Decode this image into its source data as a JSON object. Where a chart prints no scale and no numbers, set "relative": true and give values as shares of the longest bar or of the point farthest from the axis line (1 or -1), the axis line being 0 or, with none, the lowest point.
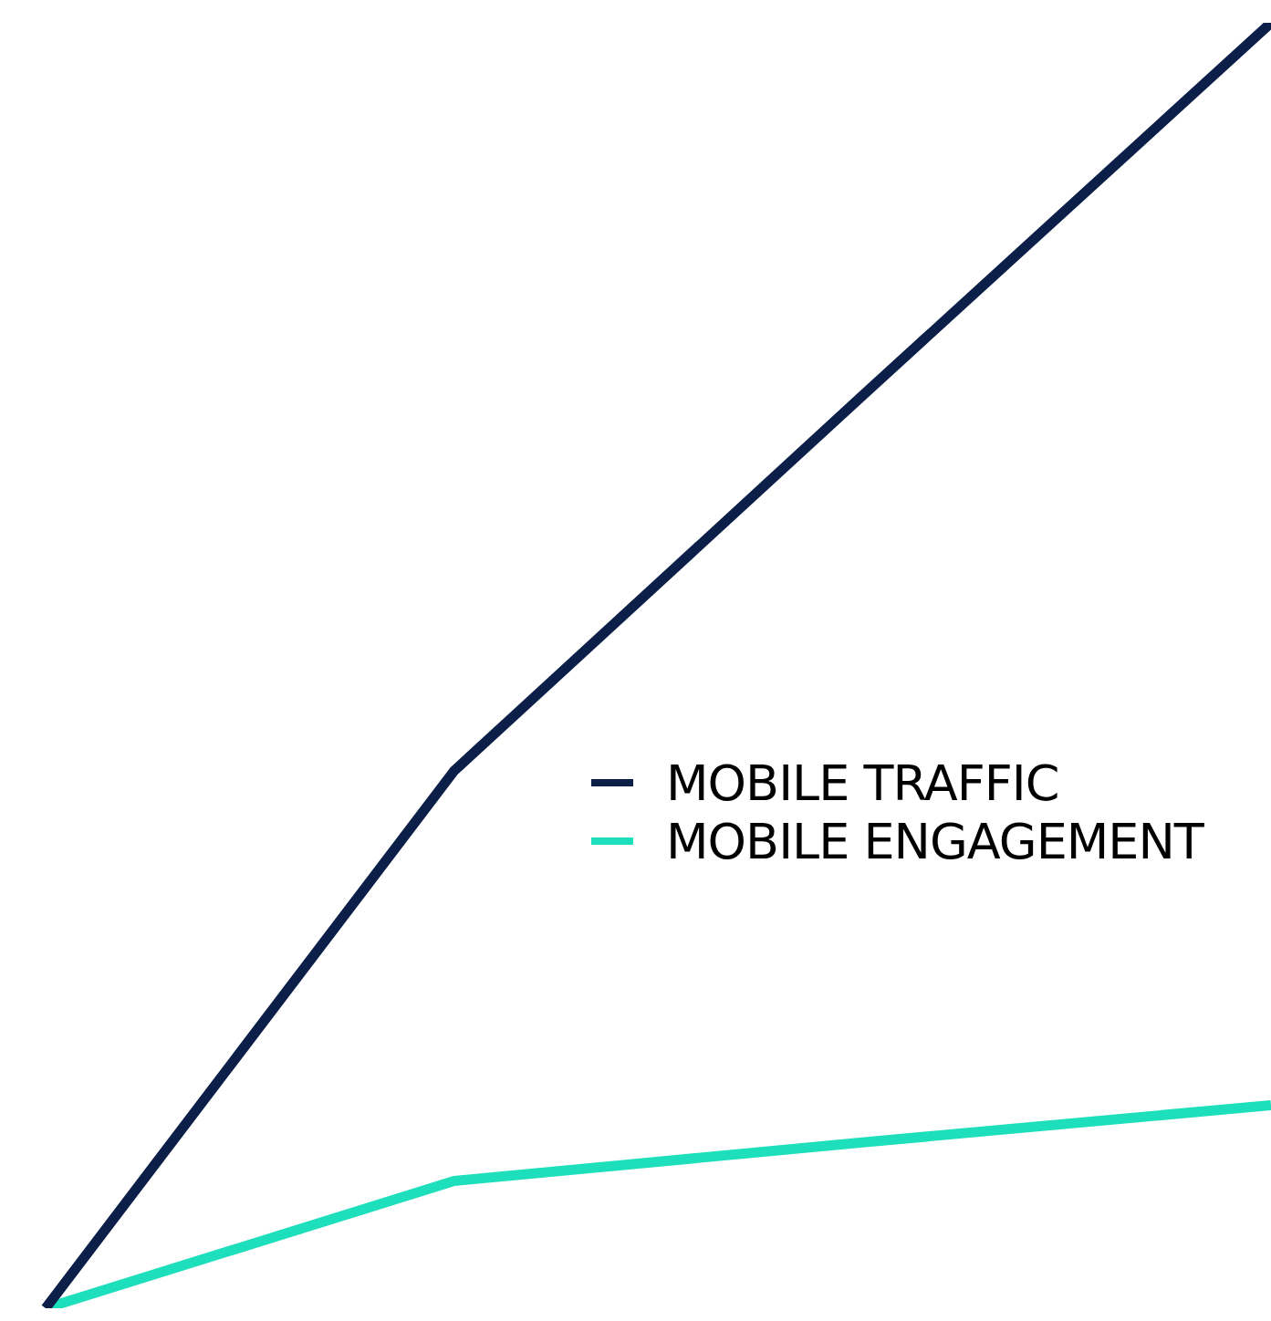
{
  "chart_data": {
    "type": "line",
    "relative": true,
    "categories": [
      null,
      null,
      null,
      null
    ],
    "series": [
      {
        "name": "MOBILE TRAFFIC",
        "color": "#0b1f48",
        "values": [
          0,
          0.418,
          0.71,
          1
        ]
      },
      {
        "name": "MOBILE ENGAGEMENT",
        "color": "#1ddfbc",
        "values": [
          0,
          0.099,
          0.129,
          0.158
        ]
      }
    ],
    "legend": "right",
    "marker": "none",
    "line_style": "solid"
  }
}
